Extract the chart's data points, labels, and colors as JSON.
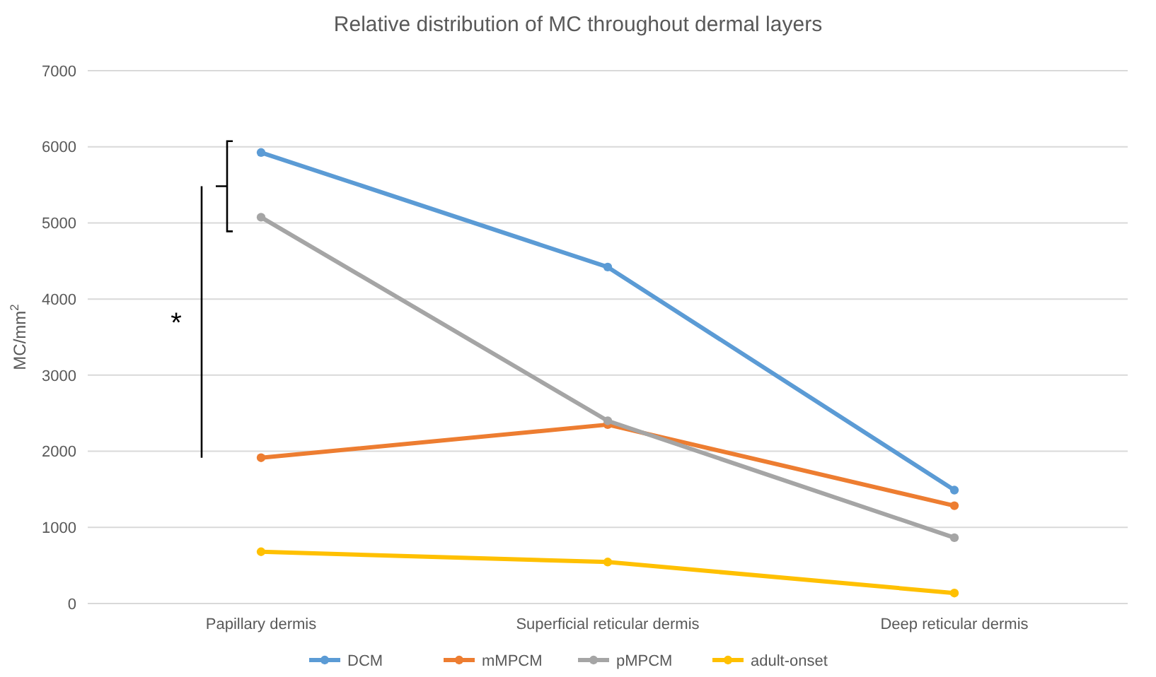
{
  "chart_data": {
    "type": "line",
    "title": "Relative distribution of MC throughout dermal layers",
    "ylabel": "MC/mm$^{2}$",
    "categories": [
      "Papillary dermis",
      "Superficial reticular dermis",
      "Deep reticular dermis"
    ],
    "series": [
      {
        "name": "DCM",
        "color": "#5b9bd5",
        "values": [
          5925,
          4420,
          1490
        ]
      },
      {
        "name": "mMPCM",
        "color": "#ed7d31",
        "values": [
          1915,
          2350,
          1285
        ]
      },
      {
        "name": "pMPCM",
        "color": "#a5a5a5",
        "values": [
          5075,
          2400,
          865
        ]
      },
      {
        "name": "adult-onset",
        "color": "#ffc000",
        "values": [
          680,
          545,
          137
        ]
      }
    ],
    "ylim": [
      0,
      7000
    ],
    "yticks": [
      0,
      1000,
      2000,
      3000,
      4000,
      5000,
      6000,
      7000
    ],
    "grid": "y",
    "legend": "bottom",
    "marker": "circle",
    "line_style": "solid",
    "annotations": [
      "*"
    ]
  }
}
